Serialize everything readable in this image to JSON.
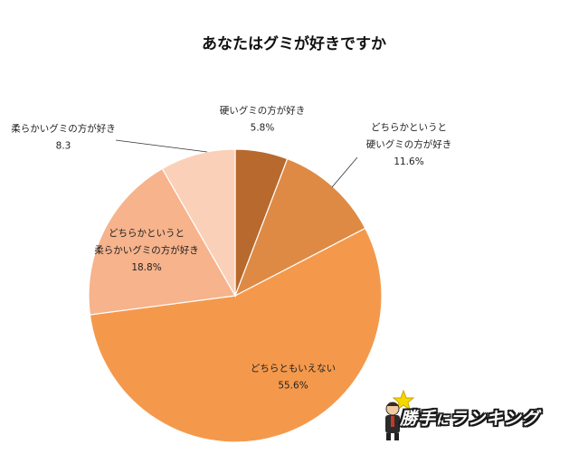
{
  "chart_data": {
    "type": "pie",
    "title": "あなたはグミが好きですか",
    "slices": [
      {
        "label_lines": [
          "硬いグミの方が好き"
        ],
        "value": 5.8,
        "value_text": "5.8%",
        "color": "#b8692e"
      },
      {
        "label_lines": [
          "どちらかというと",
          "硬いグミの方が好き"
        ],
        "value": 11.6,
        "value_text": "11.6%",
        "color": "#de8a44"
      },
      {
        "label_lines": [
          "どちらともいえない"
        ],
        "value": 55.6,
        "value_text": "55.6%",
        "color": "#f4994c"
      },
      {
        "label_lines": [
          "どちらかというと",
          "柔らかいグミの方が好き"
        ],
        "value": 18.8,
        "value_text": "18.8%",
        "color": "#f6b38c"
      },
      {
        "label_lines": [
          "柔らかいグミの方が好き"
        ],
        "value": 8.3,
        "value_text": "8.3",
        "color": "#fbd0b8"
      }
    ]
  },
  "brand": {
    "main": "勝手",
    "small": "に",
    "tail": "ランキング"
  }
}
